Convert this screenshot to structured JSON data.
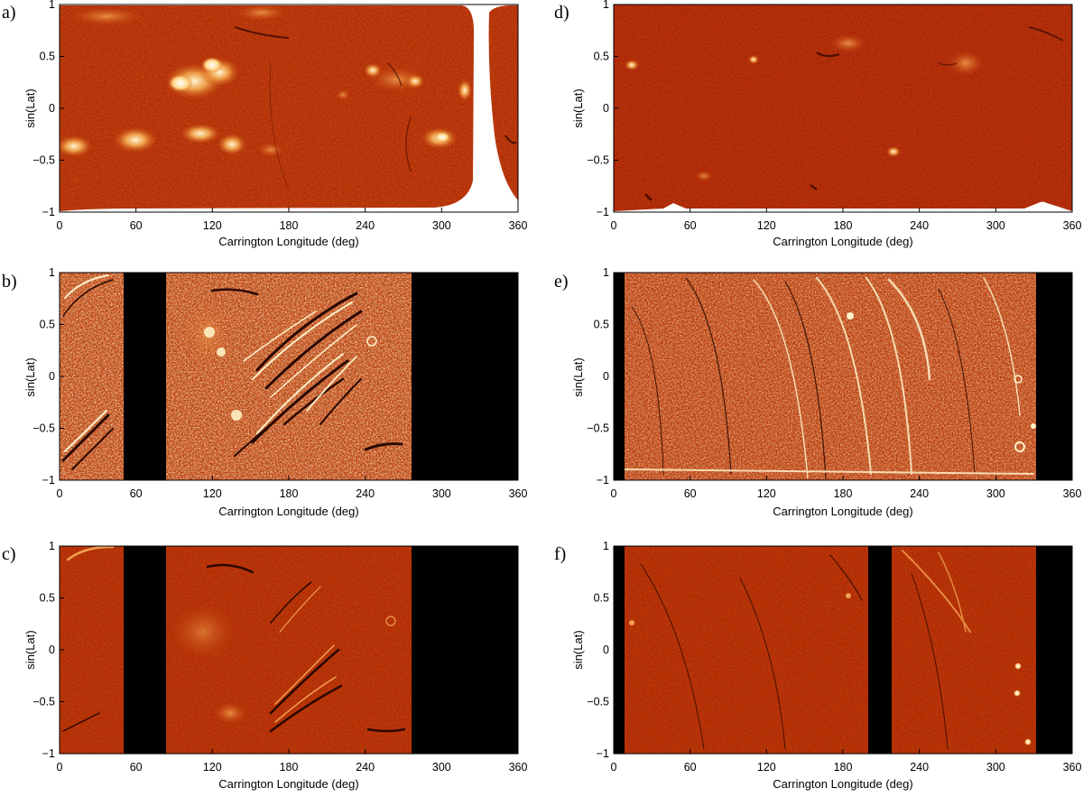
{
  "figure": {
    "x_ticks": [
      "0",
      "60",
      "120",
      "180",
      "240",
      "300",
      "360"
    ],
    "y_ticks": [
      "1",
      "0.5",
      "0",
      "−0.5",
      "−1"
    ],
    "x_label": "Carrington Longitude (deg)",
    "y_label": "sin(Lat)",
    "colormap": [
      "#b22a05",
      "#c23a0a",
      "#d85816",
      "#f0a040",
      "#ffe8a8",
      "#ffffff",
      "#4a0e00"
    ],
    "panels": [
      {
        "id": "a",
        "label": "a)",
        "data_gaps": [],
        "missing_regions": [
          "white (no data) region around longitude 325–345, all latitudes at the centre"
        ]
      },
      {
        "id": "b",
        "label": "b)",
        "data_gaps": [
          [
            50,
            83
          ],
          [
            275,
            360
          ]
        ]
      },
      {
        "id": "c",
        "label": "c)",
        "data_gaps": [
          [
            50,
            83
          ],
          [
            275,
            360
          ]
        ]
      },
      {
        "id": "d",
        "label": "d)",
        "data_gaps": []
      },
      {
        "id": "e",
        "label": "e)",
        "data_gaps": [
          [
            0,
            8
          ],
          [
            330,
            360
          ]
        ]
      },
      {
        "id": "f",
        "label": "f)",
        "data_gaps": [
          [
            0,
            8
          ],
          [
            200,
            218
          ],
          [
            330,
            360
          ]
        ]
      }
    ]
  }
}
